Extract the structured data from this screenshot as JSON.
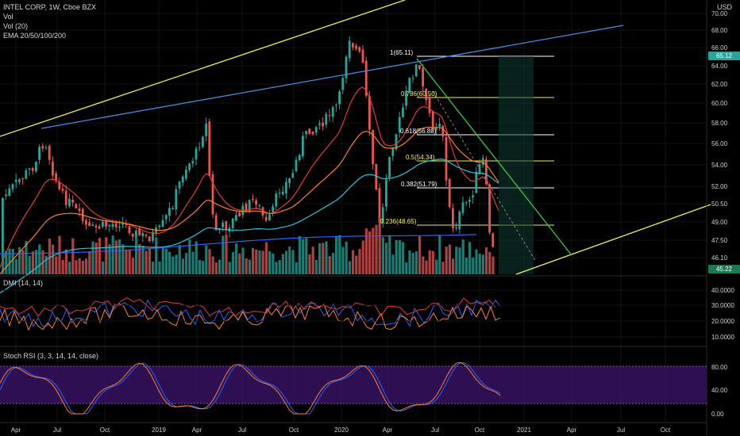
{
  "header": {
    "symbol": "INTEL CORP, 1W, Cboe BZX",
    "vol_label": "Vol",
    "vol20_label": "Vol (20)",
    "ema_label": "EMA 20/50/100/200",
    "currency": "USD"
  },
  "price_axis": {
    "ticks": [
      "70.00",
      "68.00",
      "66.00",
      "64.00",
      "62.00",
      "60.00",
      "58.00",
      "56.00",
      "54.00",
      "52.00",
      "50.50",
      "49.00",
      "47.50",
      "46.10"
    ],
    "last_price": "65.12",
    "last_close": "45.22"
  },
  "dmi": {
    "label": "DMI (14, 14)",
    "ticks": [
      "40.0000",
      "30.0000",
      "20.0000",
      "10.0000"
    ]
  },
  "stoch": {
    "label": "Stoch RSI (3, 3, 14, 14, close)",
    "ticks": [
      "80.00",
      "40.00",
      "0.00"
    ]
  },
  "time_axis": {
    "labels": [
      "Apr",
      "Jul",
      "Oct",
      "2019",
      "Apr",
      "Jul",
      "Oct",
      "2020",
      "Apr",
      "Jul",
      "Oct",
      "2021",
      "Apr",
      "Jul",
      "Oct"
    ]
  },
  "fib_labels": [
    "1(65.11)",
    "0.786(60.50)",
    "0.618(56.88)",
    "0.5(54.34)",
    "0.382(51.79)",
    "0.236(48.65)"
  ],
  "colors": {
    "background": "#000000",
    "bull": "#26a69a",
    "bear": "#ef5350",
    "ema20": "#e53935",
    "ema50": "#ff7f27",
    "ema100": "#26c6da",
    "ema200": "#2962ff",
    "trend_yellow": "#f5f24a",
    "trend_blue": "#3d8ee0",
    "trend_green": "#2ecc40",
    "stoch_band": "#3a1466",
    "price_tag": "#26a69a"
  }
}
